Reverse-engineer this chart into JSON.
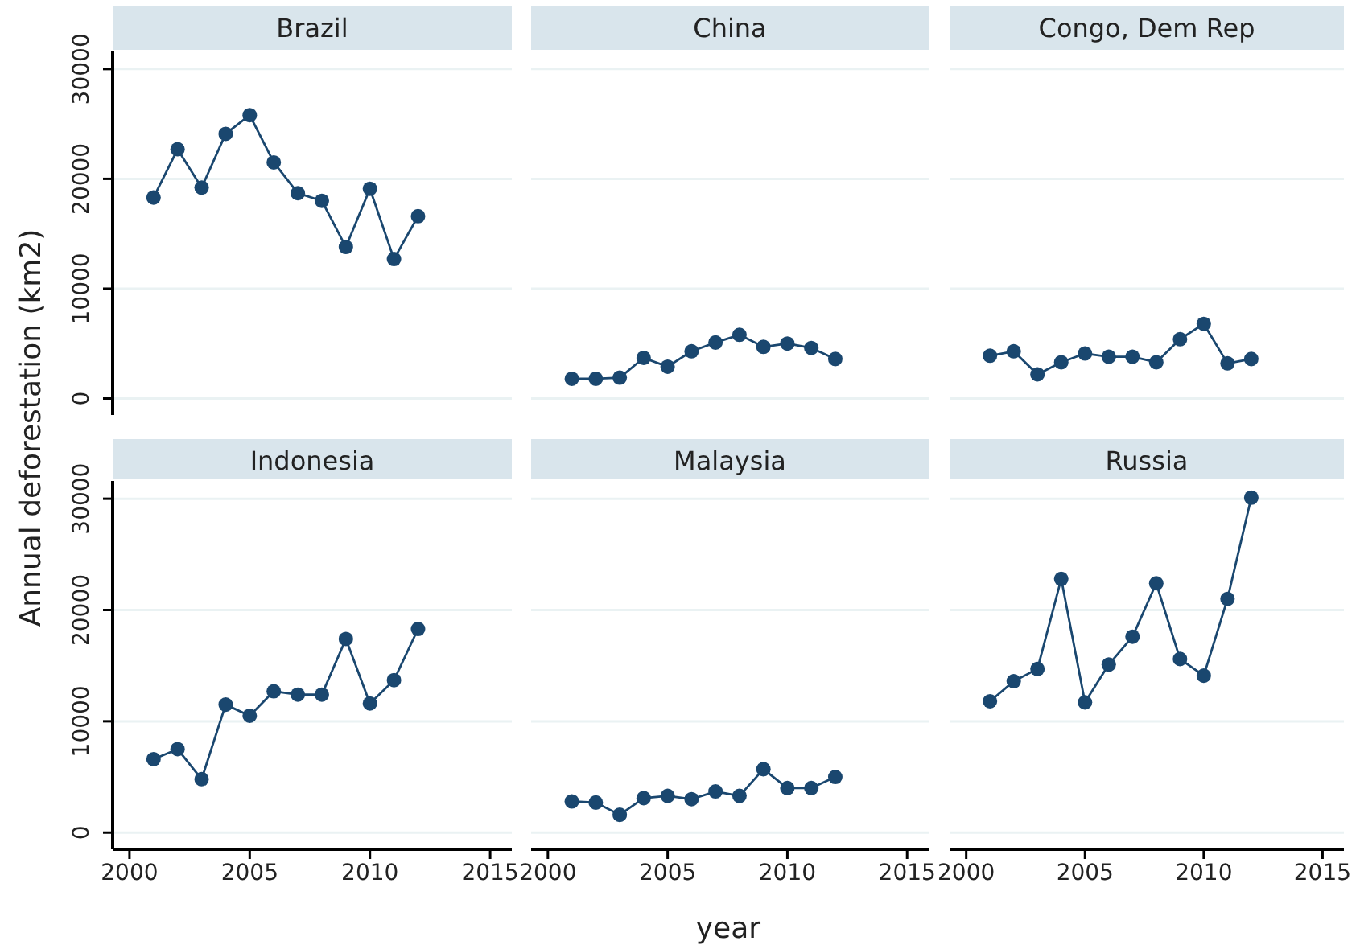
{
  "chart_data": [
    {
      "type": "line",
      "title": "Brazil",
      "ylabel": "Annual deforestation (km2)",
      "x": [
        2001,
        2002,
        2003,
        2004,
        2005,
        2006,
        2007,
        2008,
        2009,
        2010,
        2011,
        2012
      ],
      "values": [
        18300,
        22700,
        19200,
        24100,
        25800,
        21500,
        18700,
        18000,
        13800,
        19100,
        12700,
        16600
      ],
      "color": "#1a476f",
      "marker": "circle",
      "line_style": "solid",
      "grid": "y",
      "xlim": [
        1999.3,
        2015.9
      ],
      "ylim": [
        -1500,
        31600
      ],
      "yticks": [
        0,
        10000,
        20000,
        30000
      ],
      "tick_labels": "y"
    },
    {
      "type": "line",
      "title": "China",
      "x": [
        2001,
        2002,
        2003,
        2004,
        2005,
        2006,
        2007,
        2008,
        2009,
        2010,
        2011,
        2012
      ],
      "values": [
        1800,
        1800,
        1900,
        3700,
        2900,
        4300,
        5100,
        5800,
        4700,
        5000,
        4600,
        3600
      ],
      "color": "#1a476f",
      "marker": "circle",
      "line_style": "solid",
      "grid": "y",
      "xlim": [
        1999.3,
        2015.9
      ],
      "yticks": [
        0,
        10000,
        20000,
        30000
      ],
      "tick_labels": false
    },
    {
      "type": "line",
      "title": "Congo, Dem Rep",
      "x": [
        2001,
        2002,
        2003,
        2004,
        2005,
        2006,
        2007,
        2008,
        2009,
        2010,
        2011,
        2012
      ],
      "values": [
        3900,
        4300,
        2200,
        3300,
        4100,
        3800,
        3800,
        3300,
        5400,
        6800,
        3200,
        3600
      ],
      "color": "#1a476f",
      "marker": "circle",
      "line_style": "solid",
      "grid": "y",
      "xlim": [
        1999.3,
        2015.9
      ],
      "yticks": [
        0,
        10000,
        20000,
        30000
      ],
      "tick_labels": false
    },
    {
      "type": "line",
      "title": "Indonesia",
      "x": [
        2001,
        2002,
        2003,
        2004,
        2005,
        2006,
        2007,
        2008,
        2009,
        2010,
        2011,
        2012
      ],
      "values": [
        6600,
        7500,
        4800,
        11500,
        10500,
        12700,
        12400,
        12400,
        17400,
        11600,
        13700,
        18300
      ],
      "color": "#1a476f",
      "marker": "circle",
      "line_style": "solid",
      "grid": "y",
      "xlim": [
        1999.3,
        2015.9
      ],
      "xticks": [
        2000,
        2005,
        2010,
        2015
      ],
      "ylim": [
        -1500,
        31600
      ],
      "yticks": [
        0,
        10000,
        20000,
        30000
      ]
    },
    {
      "type": "line",
      "title": "Malaysia",
      "xlabel": "year",
      "x": [
        2001,
        2002,
        2003,
        2004,
        2005,
        2006,
        2007,
        2008,
        2009,
        2010,
        2011,
        2012
      ],
      "values": [
        2800,
        2700,
        1600,
        3100,
        3300,
        3000,
        3700,
        3300,
        5700,
        4000,
        4000,
        5000
      ],
      "color": "#1a476f",
      "marker": "circle",
      "line_style": "solid",
      "grid": "y",
      "xlim": [
        1999.3,
        2015.9
      ],
      "xticks": [
        2000,
        2005,
        2010,
        2015
      ],
      "yticks": [
        0,
        10000,
        20000,
        30000
      ],
      "tick_labels": "x"
    },
    {
      "type": "line",
      "title": "Russia",
      "x": [
        2001,
        2002,
        2003,
        2004,
        2005,
        2006,
        2007,
        2008,
        2009,
        2010,
        2011,
        2012
      ],
      "values": [
        11800,
        13600,
        14700,
        22800,
        11700,
        15100,
        17600,
        22400,
        15600,
        14100,
        21000,
        30100
      ],
      "color": "#1a476f",
      "marker": "circle",
      "line_style": "solid",
      "grid": "y",
      "xlim": [
        1999.3,
        2015.9
      ],
      "xticks": [
        2000,
        2005,
        2010,
        2015
      ],
      "yticks": [
        0,
        10000,
        20000,
        30000
      ],
      "tick_labels": "x"
    }
  ]
}
